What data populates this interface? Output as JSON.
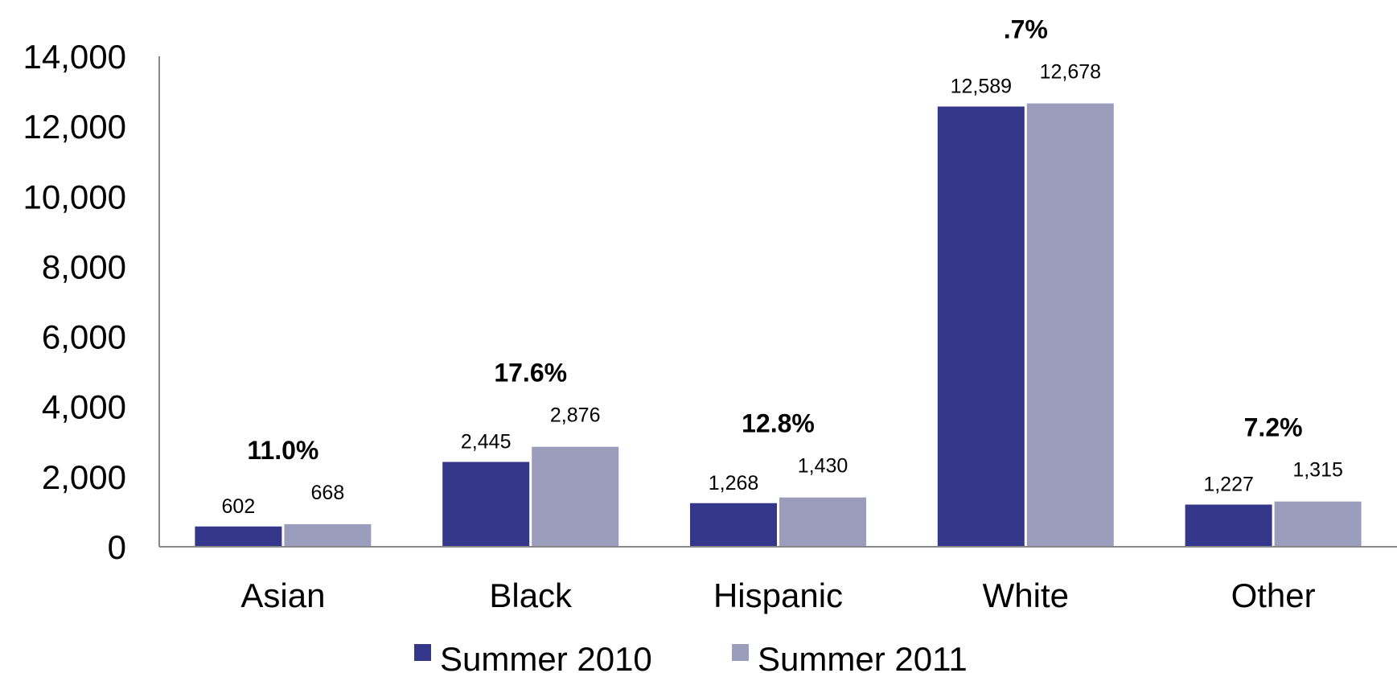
{
  "chart_data": {
    "type": "bar",
    "title": "",
    "xlabel": "",
    "ylabel": "",
    "categories": [
      "Asian",
      "Black",
      "Hispanic",
      "White",
      "Other"
    ],
    "series": [
      {
        "name": "Summer 2010",
        "values": [
          602,
          2445,
          1268,
          12589,
          1227
        ],
        "value_labels": [
          "602",
          "2,445",
          "1,268",
          "12,589",
          "1,227"
        ],
        "color": "#35378a"
      },
      {
        "name": "Summer 2011",
        "values": [
          668,
          2876,
          1430,
          12678,
          1315
        ],
        "value_labels": [
          "668",
          "2,876",
          "1,430",
          "12,678",
          "1,315"
        ],
        "color": "#9c9dbd"
      }
    ],
    "annotations": [
      "11.0%",
      "17.6%",
      "12.8%",
      ".7%",
      "7.2%"
    ],
    "ylim": [
      0,
      14000
    ],
    "y_ticks": [
      0,
      2000,
      4000,
      6000,
      8000,
      10000,
      12000,
      14000
    ],
    "y_tick_labels": [
      "0",
      "2,000",
      "4,000",
      "6,000",
      "8,000",
      "10,000",
      "12,000",
      "14,000"
    ],
    "grid": false,
    "legend_position": "bottom"
  }
}
